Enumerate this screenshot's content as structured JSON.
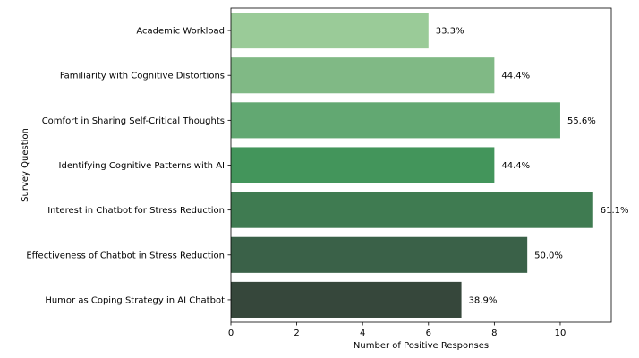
{
  "chart_data": {
    "type": "bar",
    "orientation": "horizontal",
    "categories": [
      "Academic Workload",
      "Familiarity with Cognitive Distortions",
      "Comfort in Sharing Self-Critical Thoughts",
      "Identifying Cognitive Patterns with AI",
      "Interest in Chatbot for Stress Reduction",
      "Effectiveness of Chatbot in Stress Reduction",
      "Humor as Coping Strategy in AI Chatbot"
    ],
    "values": [
      6,
      8,
      10,
      8,
      11,
      9,
      7
    ],
    "data_labels": [
      "33.3%",
      "44.4%",
      "55.6%",
      "44.4%",
      "61.1%",
      "50.0%",
      "38.9%"
    ],
    "colors": [
      "#9acb98",
      "#80b985",
      "#62a872",
      "#43955b",
      "#3f7b51",
      "#3a6148",
      "#36473b"
    ],
    "xlabel": "Number of Positive Responses",
    "ylabel": "Survey Question",
    "xlim": [
      0,
      11.55
    ],
    "xticks": [
      0,
      2,
      4,
      6,
      8,
      10
    ],
    "grid": false
  }
}
